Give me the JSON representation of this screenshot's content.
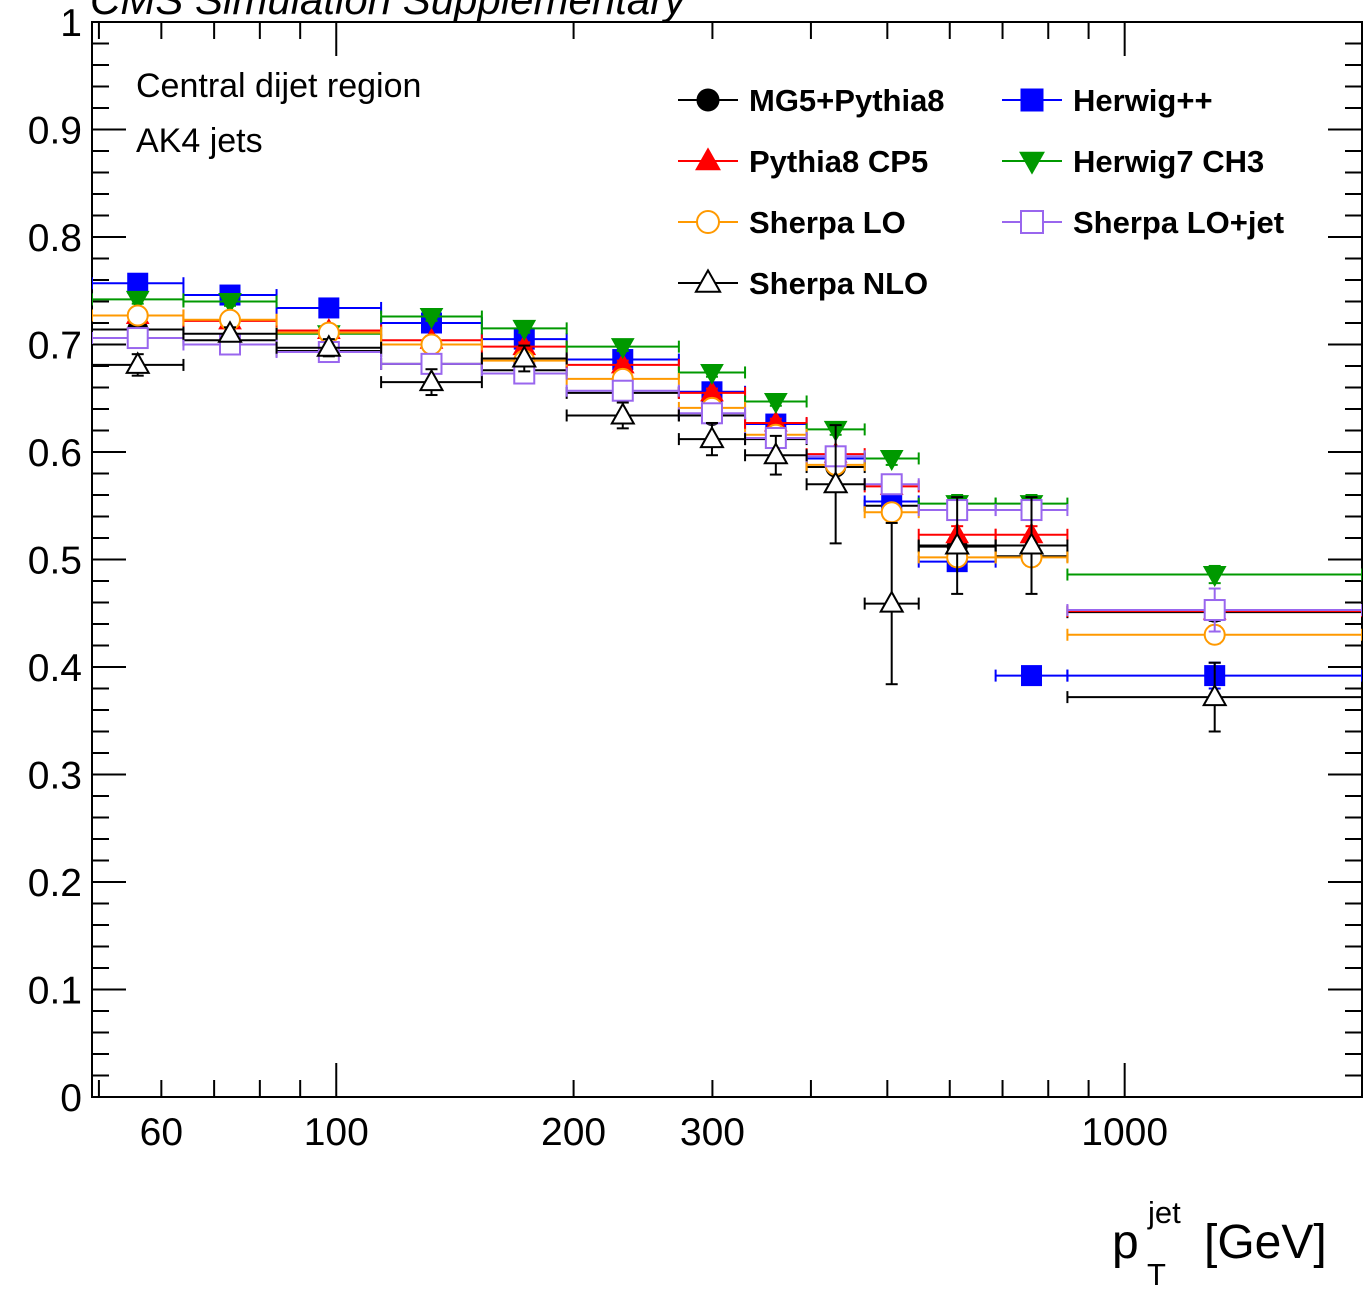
{
  "chart_data": {
    "type": "scatter",
    "header_fragment_left": "CMS Simulation Supplementary",
    "header_fragment_right": "",
    "annotations": [
      "Central dijet region",
      "AK4 jets"
    ],
    "xlabel_main": "p",
    "xlabel_sup": "jet",
    "xlabel_sub": "T",
    "xlabel_unit": "[GeV]",
    "ylabel": "",
    "xscale": "log",
    "xlim": [
      49,
      2000
    ],
    "ylim": [
      0,
      1
    ],
    "xticks": [
      {
        "value": 60,
        "label": "60"
      },
      {
        "value": 100,
        "label": "100"
      },
      {
        "value": 200,
        "label": "200"
      },
      {
        "value": 300,
        "label": "300"
      },
      {
        "value": 1000,
        "label": "1000"
      }
    ],
    "yticks": [
      {
        "value": 0,
        "label": "0"
      },
      {
        "value": 0.1,
        "label": "0.1"
      },
      {
        "value": 0.2,
        "label": "0.2"
      },
      {
        "value": 0.3,
        "label": "0.3"
      },
      {
        "value": 0.4,
        "label": "0.4"
      },
      {
        "value": 0.5,
        "label": "0.5"
      },
      {
        "value": 0.6,
        "label": "0.6"
      },
      {
        "value": 0.7,
        "label": "0.7"
      },
      {
        "value": 0.8,
        "label": "0.8"
      },
      {
        "value": 0.9,
        "label": "0.9"
      },
      {
        "value": 1,
        "label": "1"
      }
    ],
    "legend_position": "top-right",
    "bins": [
      [
        49,
        64
      ],
      [
        64,
        84
      ],
      [
        84,
        114
      ],
      [
        114,
        153
      ],
      [
        153,
        196
      ],
      [
        196,
        272
      ],
      [
        272,
        330
      ],
      [
        330,
        395
      ],
      [
        395,
        468
      ],
      [
        468,
        548
      ],
      [
        548,
        686
      ],
      [
        686,
        846
      ],
      [
        846,
        2000
      ]
    ],
    "series": [
      {
        "name": "MG5+Pythia8",
        "color": "#000000",
        "marker": "circle",
        "filled": true,
        "values": [
          0.714,
          0.704,
          0.694,
          0.682,
          0.676,
          0.655,
          0.634,
          0.612,
          0.586,
          0.55,
          0.512,
          0.503,
          0.451
        ],
        "errors": [
          0.004,
          0.004,
          0.004,
          0.004,
          0.004,
          0.004,
          0.004,
          0.004,
          0.005,
          0.006,
          0.008,
          0.008,
          0.008
        ]
      },
      {
        "name": "Herwig++",
        "color": "#0000ff",
        "marker": "square",
        "filled": true,
        "values": [
          0.757,
          0.746,
          0.734,
          0.72,
          0.705,
          0.686,
          0.656,
          0.626,
          0.594,
          0.554,
          0.498,
          0.392,
          0.392
        ],
        "errors": [
          0.004,
          0.004,
          0.004,
          0.004,
          0.004,
          0.004,
          0.004,
          0.004,
          0.005,
          0.006,
          0.008,
          0.008,
          0.012
        ]
      },
      {
        "name": "Pythia8 CP5",
        "color": "#ff0000",
        "marker": "triangle-up",
        "filled": true,
        "values": [
          0.727,
          0.722,
          0.713,
          0.704,
          0.698,
          0.681,
          0.655,
          0.627,
          0.598,
          0.568,
          0.523,
          0.523,
          0.452
        ],
        "errors": [
          0.004,
          0.004,
          0.004,
          0.004,
          0.004,
          0.004,
          0.004,
          0.004,
          0.005,
          0.006,
          0.008,
          0.008,
          0.008
        ]
      },
      {
        "name": "Herwig7 CH3",
        "color": "#009900",
        "marker": "triangle-down",
        "filled": true,
        "values": [
          0.742,
          0.74,
          0.71,
          0.726,
          0.715,
          0.698,
          0.674,
          0.647,
          0.621,
          0.594,
          0.552,
          0.552,
          0.486
        ],
        "errors": [
          0.004,
          0.004,
          0.004,
          0.004,
          0.004,
          0.004,
          0.004,
          0.004,
          0.005,
          0.006,
          0.008,
          0.008,
          0.008
        ]
      },
      {
        "name": "Sherpa LO",
        "color": "#ff9900",
        "marker": "circle",
        "filled": false,
        "values": [
          0.727,
          0.723,
          0.711,
          0.7,
          0.685,
          0.668,
          0.641,
          0.616,
          0.588,
          0.544,
          0.502,
          0.502,
          0.43
        ],
        "errors": [
          0.004,
          0.004,
          0.004,
          0.004,
          0.004,
          0.004,
          0.004,
          0.004,
          0.005,
          0.006,
          0.008,
          0.008,
          0.008
        ]
      },
      {
        "name": "Sherpa LO+jet",
        "color": "#9966ee",
        "marker": "square",
        "filled": false,
        "values": [
          0.706,
          0.7,
          0.693,
          0.682,
          0.673,
          0.657,
          0.636,
          0.613,
          0.596,
          0.57,
          0.546,
          0.546,
          0.453
        ],
        "errors": [
          0.004,
          0.004,
          0.004,
          0.004,
          0.004,
          0.004,
          0.004,
          0.004,
          0.005,
          0.006,
          0.008,
          0.008,
          0.02
        ]
      },
      {
        "name": "Sherpa NLO",
        "color": "#000000",
        "marker": "triangle-up",
        "filled": false,
        "values": [
          0.681,
          0.71,
          0.697,
          0.665,
          0.687,
          0.634,
          0.612,
          0.597,
          0.57,
          0.459,
          0.513,
          0.513,
          0.372
        ],
        "errors": [
          0.01,
          0.006,
          0.008,
          0.012,
          0.012,
          0.012,
          0.015,
          0.018,
          0.055,
          0.075,
          0.045,
          0.045,
          0.032
        ]
      }
    ]
  }
}
